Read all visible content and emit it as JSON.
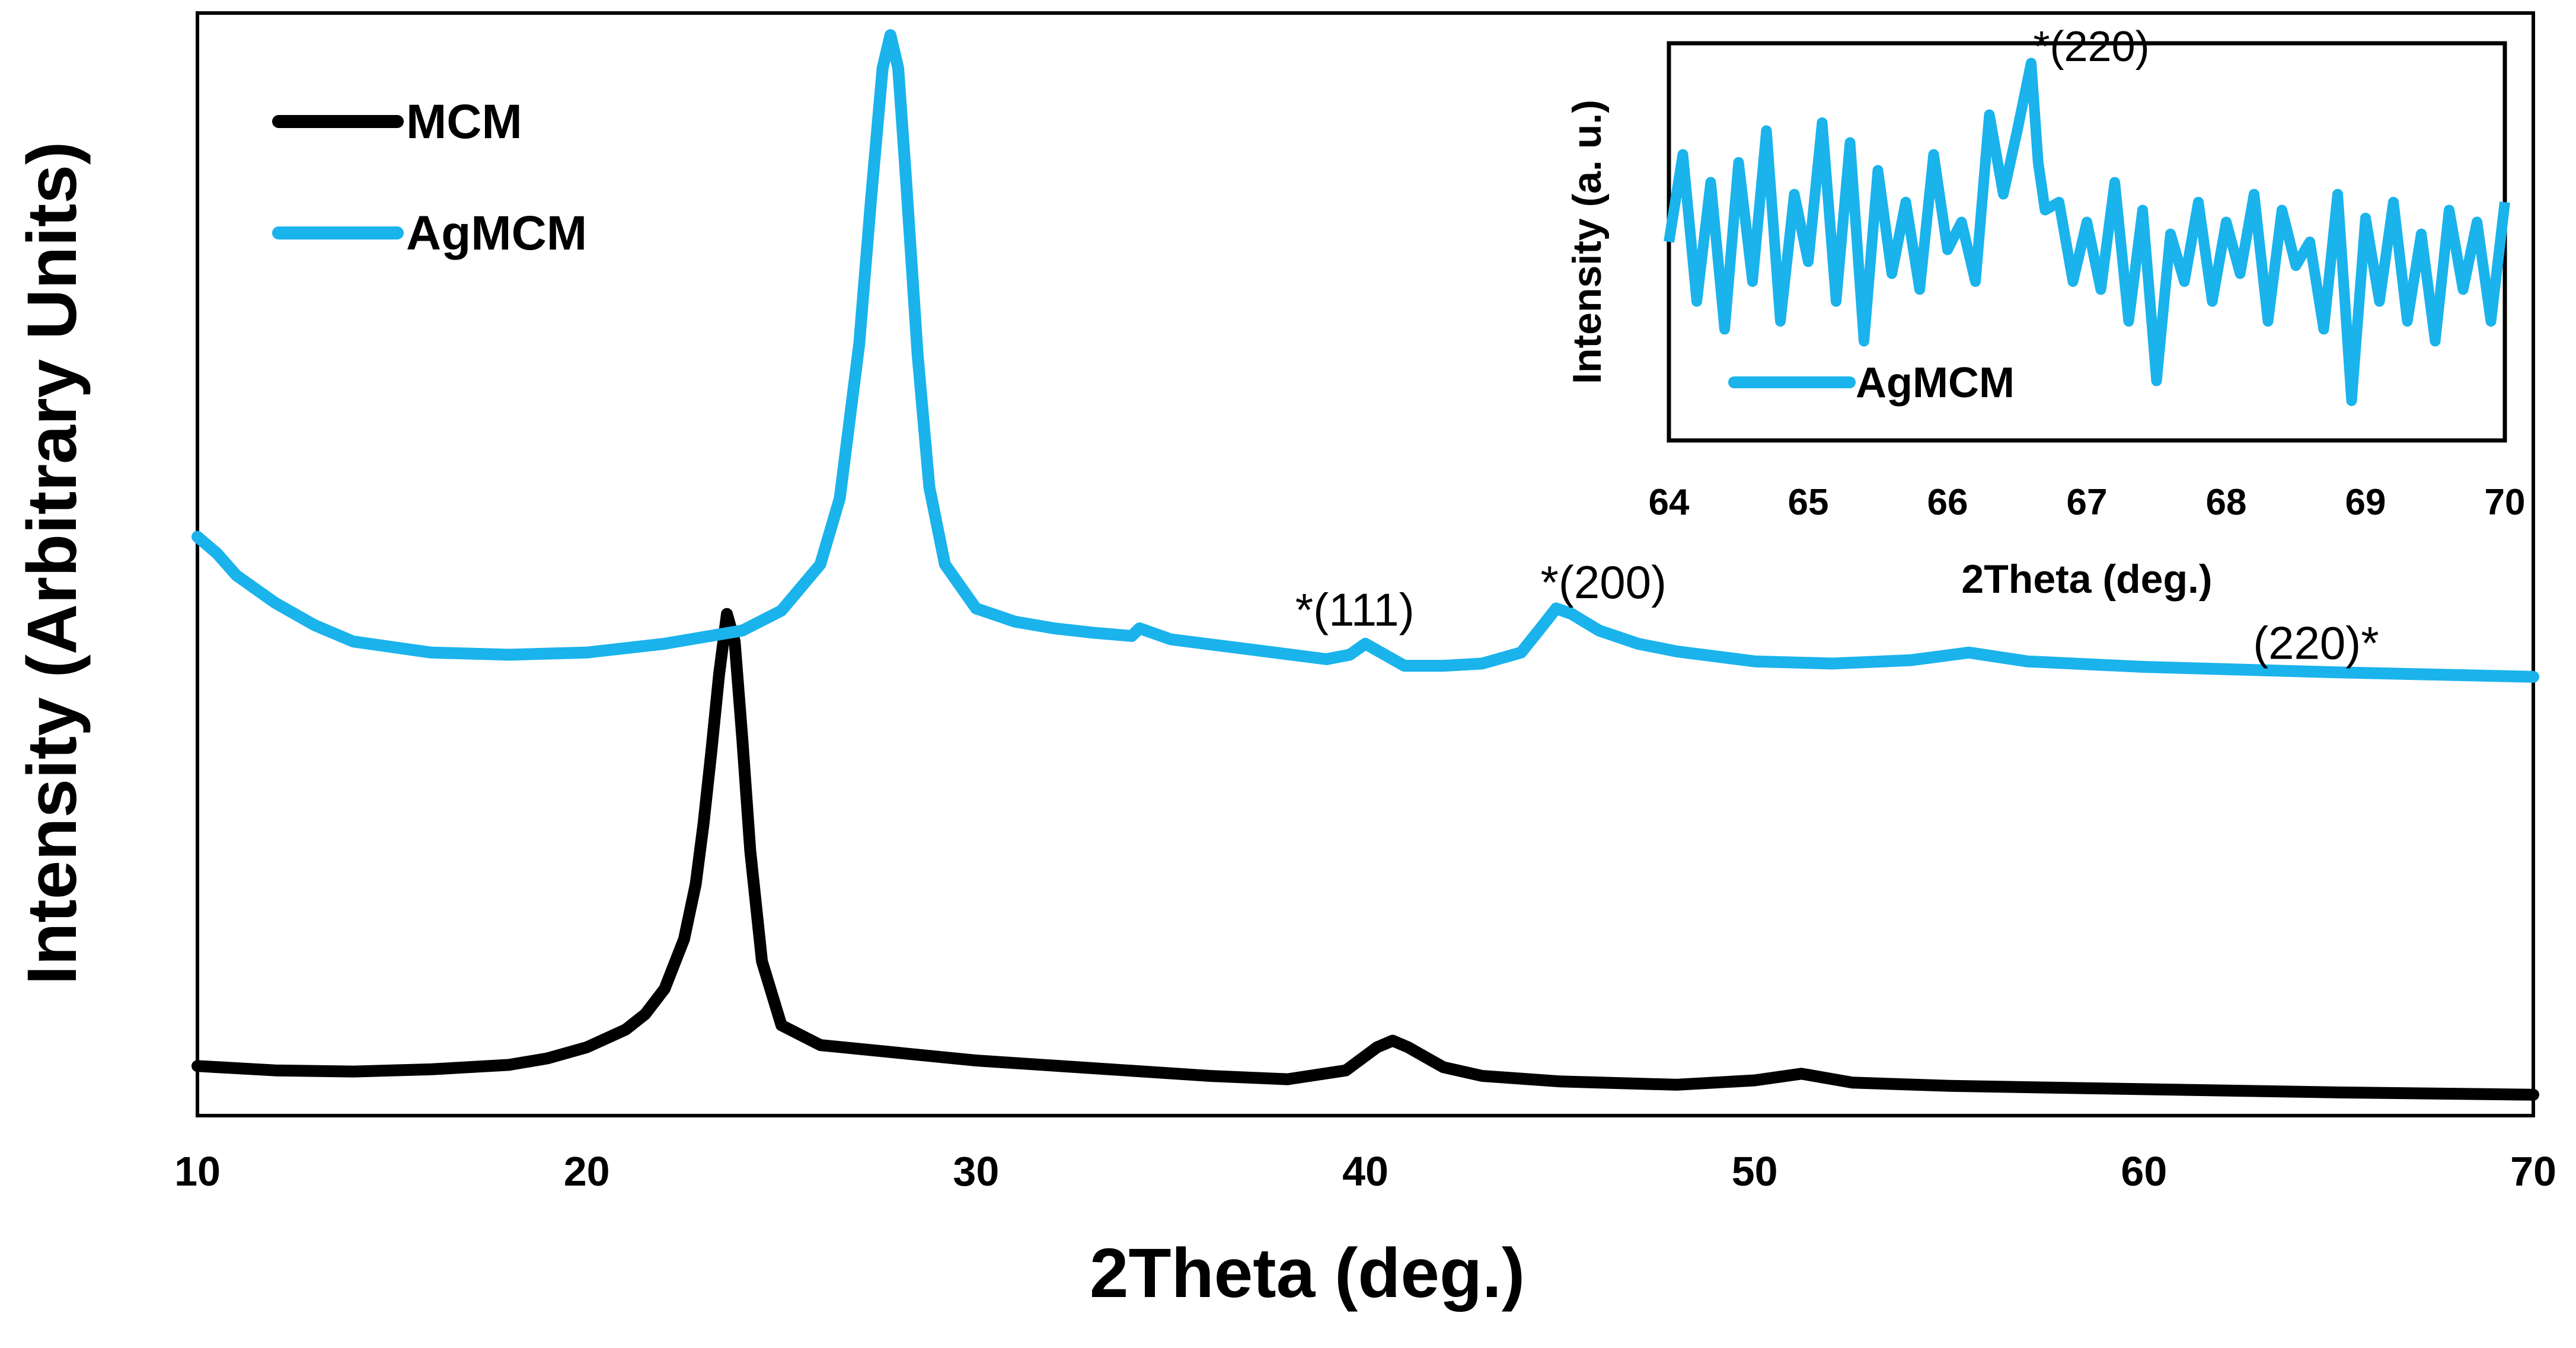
{
  "colors": {
    "mcm": "#000000",
    "agmcm": "#1ab3ec",
    "axes": "#000000"
  },
  "chart_data": [
    {
      "type": "line",
      "title": "",
      "xlabel": "2Theta (deg.)",
      "ylabel": "Intensity (Arbitrary Units)",
      "xlim": [
        10,
        70
      ],
      "ylim": [
        0,
        1
      ],
      "xticks": [
        "10",
        "20",
        "30",
        "40",
        "50",
        "60",
        "70"
      ],
      "legend_position": "top-left",
      "series": [
        {
          "name": "MCM",
          "x": [
            10,
            12,
            14,
            16,
            18,
            19,
            20,
            21,
            21.5,
            22,
            22.5,
            22.8,
            23,
            23.2,
            23.4,
            23.6,
            23.8,
            24,
            24.2,
            24.5,
            25,
            26,
            28,
            30,
            33,
            36,
            38,
            39.5,
            40.3,
            40.7,
            41.1,
            42,
            43,
            45,
            48,
            50,
            51.2,
            52.5,
            55,
            60,
            65,
            70
          ],
          "y": [
            0.045,
            0.041,
            0.04,
            0.042,
            0.046,
            0.052,
            0.062,
            0.078,
            0.092,
            0.115,
            0.16,
            0.21,
            0.265,
            0.33,
            0.4,
            0.455,
            0.43,
            0.34,
            0.24,
            0.14,
            0.082,
            0.064,
            0.057,
            0.05,
            0.043,
            0.036,
            0.033,
            0.041,
            0.062,
            0.068,
            0.062,
            0.044,
            0.036,
            0.031,
            0.028,
            0.032,
            0.038,
            0.03,
            0.027,
            0.024,
            0.021,
            0.019
          ]
        },
        {
          "name": "AgMCM",
          "x": [
            10,
            10.5,
            11,
            12,
            13,
            14,
            16,
            18,
            20,
            22,
            24,
            25,
            26,
            26.5,
            27,
            27.3,
            27.6,
            27.8,
            28,
            28.2,
            28.5,
            28.8,
            29.2,
            30,
            31,
            32,
            33,
            34,
            34.2,
            35,
            37,
            39,
            39.6,
            40,
            40.4,
            41,
            42,
            43,
            44,
            44.5,
            44.9,
            45.3,
            46,
            47,
            48,
            50,
            52,
            54,
            55.5,
            57,
            60,
            65,
            70
          ],
          "y": [
            0.525,
            0.51,
            0.49,
            0.465,
            0.445,
            0.43,
            0.42,
            0.418,
            0.42,
            0.428,
            0.44,
            0.458,
            0.5,
            0.56,
            0.7,
            0.83,
            0.95,
            0.98,
            0.95,
            0.85,
            0.69,
            0.57,
            0.5,
            0.46,
            0.448,
            0.442,
            0.438,
            0.435,
            0.442,
            0.432,
            0.423,
            0.414,
            0.418,
            0.428,
            0.42,
            0.408,
            0.408,
            0.41,
            0.42,
            0.442,
            0.46,
            0.455,
            0.44,
            0.428,
            0.421,
            0.412,
            0.41,
            0.413,
            0.42,
            0.412,
            0.407,
            0.402,
            0.398
          ]
        }
      ],
      "annotations": [
        {
          "text": "*(111)",
          "x": 38.2,
          "y": 0.455
        },
        {
          "text": "*(200)",
          "x": 44.5,
          "y": 0.48
        },
        {
          "text": "(220)*",
          "x": 62.8,
          "y": 0.425
        }
      ]
    },
    {
      "type": "line",
      "title": "",
      "xlabel": "2Theta (deg.)",
      "ylabel": "Intensity (a. u.)",
      "xlim": [
        64,
        70
      ],
      "ylim": [
        0,
        1
      ],
      "xticks": [
        "64",
        "65",
        "66",
        "67",
        "68",
        "69",
        "70"
      ],
      "legend_position": "bottom-left",
      "series": [
        {
          "name": "AgMCM",
          "x": [
            64,
            64.1,
            64.2,
            64.3,
            64.4,
            64.5,
            64.6,
            64.7,
            64.8,
            64.9,
            65,
            65.1,
            65.2,
            65.3,
            65.4,
            65.5,
            65.6,
            65.7,
            65.8,
            65.9,
            66,
            66.1,
            66.2,
            66.3,
            66.4,
            66.5,
            66.6,
            66.65,
            66.7,
            66.8,
            66.9,
            67,
            67.1,
            67.2,
            67.3,
            67.4,
            67.5,
            67.6,
            67.7,
            67.8,
            67.9,
            68,
            68.1,
            68.2,
            68.3,
            68.4,
            68.5,
            68.6,
            68.7,
            68.8,
            68.9,
            69,
            69.1,
            69.2,
            69.3,
            69.4,
            69.5,
            69.6,
            69.7,
            69.8,
            69.9,
            70
          ],
          "y": [
            0.5,
            0.72,
            0.35,
            0.65,
            0.28,
            0.7,
            0.4,
            0.78,
            0.3,
            0.62,
            0.45,
            0.8,
            0.35,
            0.75,
            0.25,
            0.68,
            0.42,
            0.6,
            0.38,
            0.72,
            0.48,
            0.55,
            0.4,
            0.82,
            0.62,
            0.78,
            0.95,
            0.7,
            0.58,
            0.6,
            0.4,
            0.55,
            0.38,
            0.65,
            0.3,
            0.58,
            0.15,
            0.52,
            0.4,
            0.6,
            0.35,
            0.55,
            0.42,
            0.62,
            0.3,
            0.58,
            0.44,
            0.5,
            0.28,
            0.62,
            0.1,
            0.56,
            0.35,
            0.6,
            0.3,
            0.52,
            0.25,
            0.58,
            0.38,
            0.55,
            0.3,
            0.6
          ]
        }
      ],
      "annotations": [
        {
          "text": "*(220)",
          "x": 66.7,
          "y": 0.97
        }
      ]
    }
  ]
}
